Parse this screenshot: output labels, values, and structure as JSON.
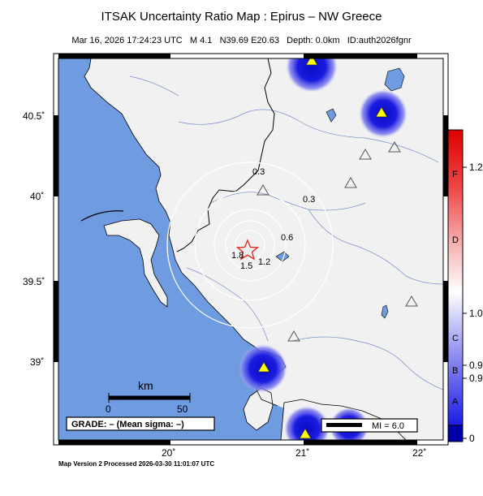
{
  "header": {
    "title": "ITSAK Uncertainty Ratio Map : Epirus – NW Greece",
    "subtitle": "Mar 16, 2026 17:24:23 UTC   M 4.1   N39.69 E20.63   Depth: 0.0km   ID:auth2026fgnr"
  },
  "axes": {
    "lat_labels": [
      "40.5˚",
      "40˚",
      "39.5˚",
      "39˚"
    ],
    "lon_labels": [
      "20˚",
      "21˚",
      "22˚"
    ]
  },
  "scale_bar": {
    "title": "km",
    "left_label": "0",
    "right_label": "50"
  },
  "grade_box": {
    "text": "GRADE: – (Mean sigma: –)"
  },
  "mi_box": {
    "text": "MI = 6.0"
  },
  "contours": [
    {
      "label": "0.3",
      "value": 0.3
    },
    {
      "label": "0.3",
      "value": 0.3
    },
    {
      "label": "0.6",
      "value": 0.6
    },
    {
      "label": "1.2",
      "value": 1.2
    },
    {
      "label": "1.5",
      "value": 1.5
    },
    {
      "label": "1.8",
      "value": 1.8
    }
  ],
  "colorbar": {
    "letters": [
      "F",
      "D",
      "C",
      "B",
      "A"
    ],
    "values": [
      "1.2",
      "1.0",
      "0.9",
      "0.9",
      "0"
    ]
  },
  "colors": {
    "sea": "#6f9be0",
    "land": "#f1f1f1",
    "station_fill": "#ffff00",
    "epicenter": "#e8231c",
    "uncertainty_high": "#1010d0",
    "uncertainty_low": "#e01010"
  },
  "footer": {
    "text": "Map Version 2 Processed 2026-03-30 11:01:07 UTC"
  }
}
